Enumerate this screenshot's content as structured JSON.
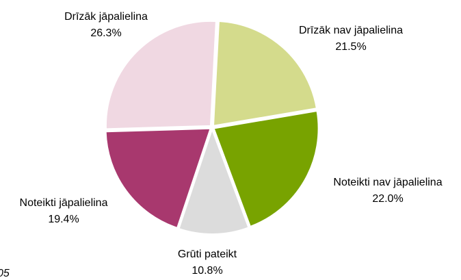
{
  "chart_data": {
    "type": "pie",
    "categories": [
      "Drīzāk nav jāpalielina",
      "Noteikti nav jāpalielina",
      "Grūti pateikt",
      "Noteikti jāpalielina",
      "Drīzāk jāpalielina"
    ],
    "values": [
      21.5,
      22.0,
      10.8,
      19.4,
      26.3
    ],
    "value_labels": [
      "21.5%",
      "22.0%",
      "10.8%",
      "19.4%",
      "26.3%"
    ],
    "colors": [
      "#d4db8c",
      "#78a300",
      "#dcdcdc",
      "#a8386e",
      "#f0d8e2"
    ],
    "annotation": "05"
  }
}
